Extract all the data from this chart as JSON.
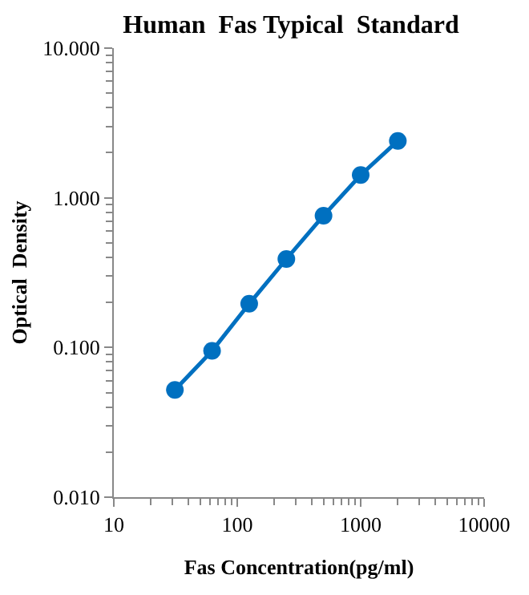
{
  "chart_data": {
    "type": "line",
    "title": "Human  Fas Typical  Standard",
    "xlabel": "Fas Concentration(pg/ml)",
    "ylabel": "Optical  Density",
    "x": [
      31.25,
      62.5,
      125,
      250,
      500,
      1000,
      2000
    ],
    "series": [
      {
        "color": "#0070c0",
        "values": [
          0.052,
          0.095,
          0.196,
          0.39,
          0.76,
          1.42,
          2.4
        ]
      }
    ],
    "log": "xy",
    "xlim": [
      10,
      10000
    ],
    "ylim": [
      0.01,
      10
    ],
    "xticks": [
      10,
      100,
      1000,
      10000
    ],
    "yticks": [
      {
        "value": 0.01,
        "label": "0.010"
      },
      {
        "value": 0.1,
        "label": "0.100"
      },
      {
        "value": 1,
        "label": "1.000"
      },
      {
        "value": 10,
        "label": "10.000"
      }
    ],
    "legend": false,
    "marker": "circle",
    "line_style": "solid"
  }
}
